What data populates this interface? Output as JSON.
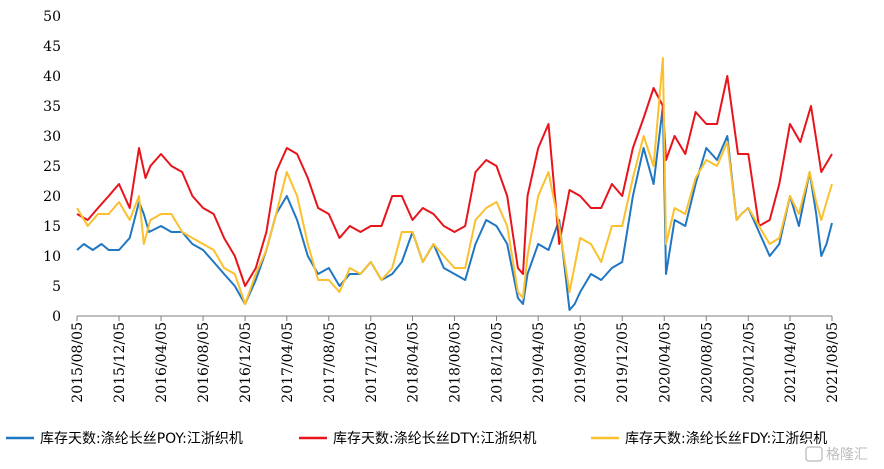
{
  "chart_data": {
    "type": "line",
    "title": "",
    "xlabel": "",
    "ylabel": "",
    "ylim": [
      0,
      50
    ],
    "yticks": [
      0,
      5,
      10,
      15,
      20,
      25,
      30,
      35,
      40,
      45,
      50
    ],
    "x_range": [
      "2015-08-05",
      "2021-08-05"
    ],
    "x_tick_labels": [
      "2015/08/05",
      "2015/12/05",
      "2016/04/05",
      "2016/08/05",
      "2016/12/05",
      "2017/04/05",
      "2017/08/05",
      "2017/12/05",
      "2018/04/05",
      "2018/08/05",
      "2018/12/05",
      "2019/04/05",
      "2019/08/05",
      "2019/12/05",
      "2020/04/05",
      "2020/08/05",
      "2020/12/05",
      "2021/04/05",
      "2021/08/05"
    ],
    "grid": false,
    "legend_position": "bottom",
    "series": [
      {
        "name": "库存天数:涤纶长丝POY:江浙织机",
        "color": "#1f77c4",
        "points": [
          [
            "2015-08-05",
            11
          ],
          [
            "2015-08-25",
            12
          ],
          [
            "2015-09-20",
            11
          ],
          [
            "2015-10-15",
            12
          ],
          [
            "2015-11-05",
            11
          ],
          [
            "2015-12-05",
            11
          ],
          [
            "2016-01-05",
            13
          ],
          [
            "2016-02-01",
            19
          ],
          [
            "2016-02-15",
            17
          ],
          [
            "2016-03-01",
            14
          ],
          [
            "2016-04-05",
            15
          ],
          [
            "2016-05-05",
            14
          ],
          [
            "2016-06-05",
            14
          ],
          [
            "2016-07-05",
            12
          ],
          [
            "2016-08-05",
            11
          ],
          [
            "2016-09-05",
            9
          ],
          [
            "2016-10-05",
            7
          ],
          [
            "2016-11-05",
            5
          ],
          [
            "2016-11-25",
            3
          ],
          [
            "2016-12-05",
            2
          ],
          [
            "2017-01-05",
            6
          ],
          [
            "2017-02-05",
            11
          ],
          [
            "2017-03-05",
            17
          ],
          [
            "2017-04-05",
            20
          ],
          [
            "2017-05-05",
            16
          ],
          [
            "2017-06-05",
            10
          ],
          [
            "2017-07-05",
            7
          ],
          [
            "2017-08-05",
            8
          ],
          [
            "2017-09-05",
            5
          ],
          [
            "2017-10-05",
            7
          ],
          [
            "2017-11-05",
            7
          ],
          [
            "2017-12-05",
            9
          ],
          [
            "2018-01-05",
            6
          ],
          [
            "2018-02-05",
            7
          ],
          [
            "2018-03-05",
            9
          ],
          [
            "2018-04-05",
            14
          ],
          [
            "2018-05-05",
            9
          ],
          [
            "2018-06-05",
            12
          ],
          [
            "2018-07-05",
            8
          ],
          [
            "2018-08-05",
            7
          ],
          [
            "2018-09-05",
            6
          ],
          [
            "2018-10-05",
            12
          ],
          [
            "2018-11-05",
            16
          ],
          [
            "2018-12-05",
            15
          ],
          [
            "2019-01-05",
            12
          ],
          [
            "2019-02-05",
            3
          ],
          [
            "2019-02-20",
            2
          ],
          [
            "2019-03-05",
            7
          ],
          [
            "2019-04-05",
            12
          ],
          [
            "2019-05-05",
            11
          ],
          [
            "2019-06-05",
            16
          ],
          [
            "2019-07-05",
            1
          ],
          [
            "2019-07-20",
            2
          ],
          [
            "2019-08-05",
            4
          ],
          [
            "2019-09-05",
            7
          ],
          [
            "2019-10-05",
            6
          ],
          [
            "2019-11-05",
            8
          ],
          [
            "2019-12-05",
            9
          ],
          [
            "2020-01-05",
            20
          ],
          [
            "2020-02-05",
            28
          ],
          [
            "2020-03-05",
            22
          ],
          [
            "2020-04-01",
            35
          ],
          [
            "2020-04-10",
            7
          ],
          [
            "2020-05-05",
            16
          ],
          [
            "2020-06-05",
            15
          ],
          [
            "2020-07-05",
            22
          ],
          [
            "2020-08-05",
            28
          ],
          [
            "2020-09-05",
            26
          ],
          [
            "2020-10-05",
            30
          ],
          [
            "2020-11-01",
            16
          ],
          [
            "2020-11-15",
            17
          ],
          [
            "2020-12-05",
            18
          ],
          [
            "2021-01-05",
            14
          ],
          [
            "2021-02-05",
            10
          ],
          [
            "2021-03-05",
            12
          ],
          [
            "2021-04-05",
            20
          ],
          [
            "2021-05-01",
            15
          ],
          [
            "2021-06-01",
            24
          ],
          [
            "2021-06-20",
            17
          ],
          [
            "2021-07-05",
            10
          ],
          [
            "2021-07-20",
            12
          ],
          [
            "2021-08-05",
            15.5
          ]
        ]
      },
      {
        "name": "库存天数:涤纶长丝DTY:江浙织机",
        "color": "#e8141b",
        "points": [
          [
            "2015-08-05",
            17
          ],
          [
            "2015-09-05",
            16
          ],
          [
            "2015-10-05",
            18
          ],
          [
            "2015-11-05",
            20
          ],
          [
            "2015-12-05",
            22
          ],
          [
            "2016-01-05",
            18
          ],
          [
            "2016-02-01",
            28
          ],
          [
            "2016-02-20",
            23
          ],
          [
            "2016-03-05",
            25
          ],
          [
            "2016-04-05",
            27
          ],
          [
            "2016-05-05",
            25
          ],
          [
            "2016-06-05",
            24
          ],
          [
            "2016-07-05",
            20
          ],
          [
            "2016-08-05",
            18
          ],
          [
            "2016-09-05",
            17
          ],
          [
            "2016-10-05",
            13
          ],
          [
            "2016-11-05",
            10
          ],
          [
            "2016-12-05",
            5
          ],
          [
            "2017-01-05",
            8
          ],
          [
            "2017-02-05",
            14
          ],
          [
            "2017-03-05",
            24
          ],
          [
            "2017-04-05",
            28
          ],
          [
            "2017-05-05",
            27
          ],
          [
            "2017-06-05",
            23
          ],
          [
            "2017-07-05",
            18
          ],
          [
            "2017-08-05",
            17
          ],
          [
            "2017-09-05",
            13
          ],
          [
            "2017-10-05",
            15
          ],
          [
            "2017-11-05",
            14
          ],
          [
            "2017-12-05",
            15
          ],
          [
            "2018-01-05",
            15
          ],
          [
            "2018-02-05",
            20
          ],
          [
            "2018-03-05",
            20
          ],
          [
            "2018-04-05",
            16
          ],
          [
            "2018-05-05",
            18
          ],
          [
            "2018-06-05",
            17
          ],
          [
            "2018-07-05",
            15
          ],
          [
            "2018-08-05",
            14
          ],
          [
            "2018-09-05",
            15
          ],
          [
            "2018-10-05",
            24
          ],
          [
            "2018-11-05",
            26
          ],
          [
            "2018-12-05",
            25
          ],
          [
            "2019-01-05",
            20
          ],
          [
            "2019-02-05",
            8
          ],
          [
            "2019-02-20",
            7
          ],
          [
            "2019-03-05",
            20
          ],
          [
            "2019-04-05",
            28
          ],
          [
            "2019-05-05",
            32
          ],
          [
            "2019-06-05",
            12
          ],
          [
            "2019-07-05",
            21
          ],
          [
            "2019-08-05",
            20
          ],
          [
            "2019-09-05",
            18
          ],
          [
            "2019-10-05",
            18
          ],
          [
            "2019-11-05",
            22
          ],
          [
            "2019-12-05",
            20
          ],
          [
            "2020-01-05",
            28
          ],
          [
            "2020-02-05",
            33
          ],
          [
            "2020-03-05",
            38
          ],
          [
            "2020-04-01",
            35
          ],
          [
            "2020-04-10",
            26
          ],
          [
            "2020-05-05",
            30
          ],
          [
            "2020-06-05",
            27
          ],
          [
            "2020-07-05",
            34
          ],
          [
            "2020-08-05",
            32
          ],
          [
            "2020-09-05",
            32
          ],
          [
            "2020-10-05",
            40
          ],
          [
            "2020-11-05",
            27
          ],
          [
            "2020-12-05",
            27
          ],
          [
            "2021-01-05",
            15
          ],
          [
            "2021-02-05",
            16
          ],
          [
            "2021-03-05",
            22
          ],
          [
            "2021-04-05",
            32
          ],
          [
            "2021-05-05",
            29
          ],
          [
            "2021-06-05",
            35
          ],
          [
            "2021-07-05",
            24
          ],
          [
            "2021-08-05",
            27
          ]
        ]
      },
      {
        "name": "库存天数:涤纶长丝FDY:江浙织机",
        "color": "#fbc02d",
        "points": [
          [
            "2015-08-05",
            18
          ],
          [
            "2015-09-05",
            15
          ],
          [
            "2015-10-05",
            17
          ],
          [
            "2015-11-05",
            17
          ],
          [
            "2015-12-05",
            19
          ],
          [
            "2016-01-05",
            16
          ],
          [
            "2016-02-01",
            20
          ],
          [
            "2016-02-15",
            12
          ],
          [
            "2016-03-05",
            16
          ],
          [
            "2016-04-05",
            17
          ],
          [
            "2016-05-05",
            17
          ],
          [
            "2016-06-05",
            14
          ],
          [
            "2016-07-05",
            13
          ],
          [
            "2016-08-05",
            12
          ],
          [
            "2016-09-05",
            11
          ],
          [
            "2016-10-05",
            8
          ],
          [
            "2016-11-05",
            7
          ],
          [
            "2016-12-05",
            2
          ],
          [
            "2017-01-05",
            7
          ],
          [
            "2017-02-05",
            11
          ],
          [
            "2017-03-05",
            17
          ],
          [
            "2017-04-05",
            24
          ],
          [
            "2017-05-05",
            20
          ],
          [
            "2017-06-05",
            12
          ],
          [
            "2017-07-05",
            6
          ],
          [
            "2017-08-05",
            6
          ],
          [
            "2017-09-05",
            4
          ],
          [
            "2017-10-05",
            8
          ],
          [
            "2017-11-05",
            7
          ],
          [
            "2017-12-05",
            9
          ],
          [
            "2018-01-05",
            6
          ],
          [
            "2018-02-05",
            8
          ],
          [
            "2018-03-05",
            14
          ],
          [
            "2018-04-05",
            14
          ],
          [
            "2018-05-05",
            9
          ],
          [
            "2018-06-05",
            12
          ],
          [
            "2018-07-05",
            10
          ],
          [
            "2018-08-05",
            8
          ],
          [
            "2018-09-05",
            8
          ],
          [
            "2018-10-05",
            16
          ],
          [
            "2018-11-05",
            18
          ],
          [
            "2018-12-05",
            19
          ],
          [
            "2019-01-05",
            15
          ],
          [
            "2019-02-05",
            4
          ],
          [
            "2019-02-20",
            3
          ],
          [
            "2019-03-05",
            10
          ],
          [
            "2019-04-05",
            20
          ],
          [
            "2019-05-05",
            24
          ],
          [
            "2019-06-05",
            15
          ],
          [
            "2019-07-05",
            4
          ],
          [
            "2019-08-05",
            13
          ],
          [
            "2019-09-05",
            12
          ],
          [
            "2019-10-05",
            9
          ],
          [
            "2019-11-05",
            15
          ],
          [
            "2019-12-05",
            15
          ],
          [
            "2020-01-05",
            23
          ],
          [
            "2020-02-05",
            30
          ],
          [
            "2020-03-05",
            25
          ],
          [
            "2020-04-01",
            43
          ],
          [
            "2020-04-10",
            12
          ],
          [
            "2020-05-05",
            18
          ],
          [
            "2020-06-05",
            17
          ],
          [
            "2020-07-05",
            23
          ],
          [
            "2020-08-05",
            26
          ],
          [
            "2020-09-05",
            25
          ],
          [
            "2020-10-05",
            29
          ],
          [
            "2020-11-01",
            16
          ],
          [
            "2020-11-15",
            17
          ],
          [
            "2020-12-05",
            18
          ],
          [
            "2021-01-05",
            15
          ],
          [
            "2021-02-05",
            12
          ],
          [
            "2021-03-05",
            13
          ],
          [
            "2021-04-05",
            20
          ],
          [
            "2021-05-01",
            17
          ],
          [
            "2021-06-01",
            24
          ],
          [
            "2021-06-20",
            19
          ],
          [
            "2021-07-05",
            16
          ],
          [
            "2021-07-20",
            19
          ],
          [
            "2021-08-05",
            22
          ]
        ]
      }
    ]
  },
  "watermark": "格隆汇"
}
